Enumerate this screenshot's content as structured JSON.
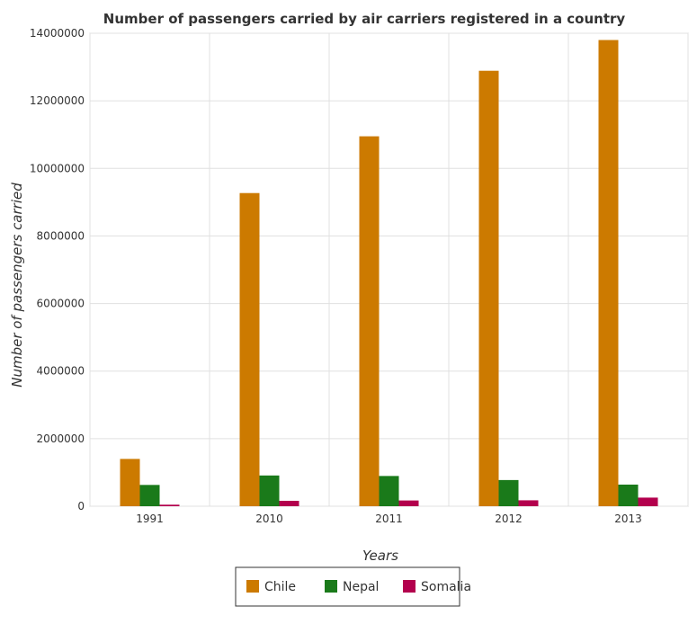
{
  "chart_data": {
    "type": "bar",
    "title": "Number of passengers carried by air carriers registered in a country",
    "xlabel": "Years",
    "ylabel": "Number of passengers carried",
    "categories": [
      "1991",
      "2010",
      "2011",
      "2012",
      "2013"
    ],
    "ylim": [
      0,
      14000000
    ],
    "yticks": [
      0,
      2000000,
      4000000,
      6000000,
      8000000,
      10000000,
      12000000,
      14000000
    ],
    "ytick_labels": [
      "0",
      "2000000",
      "4000000",
      "6000000",
      "8000000",
      "10000000",
      "12000000",
      "14000000"
    ],
    "grid": true,
    "legend_position": "bottom-center",
    "series": [
      {
        "name": "Chile",
        "color": "#cc7a00",
        "values": [
          1400000,
          9270000,
          10950000,
          12890000,
          13800000
        ]
      },
      {
        "name": "Nepal",
        "color": "#1a7a1a",
        "values": [
          630000,
          910000,
          895000,
          775000,
          640000
        ]
      },
      {
        "name": "Somalia",
        "color": "#b3004d",
        "values": [
          45000,
          160000,
          170000,
          175000,
          255000
        ]
      }
    ]
  }
}
